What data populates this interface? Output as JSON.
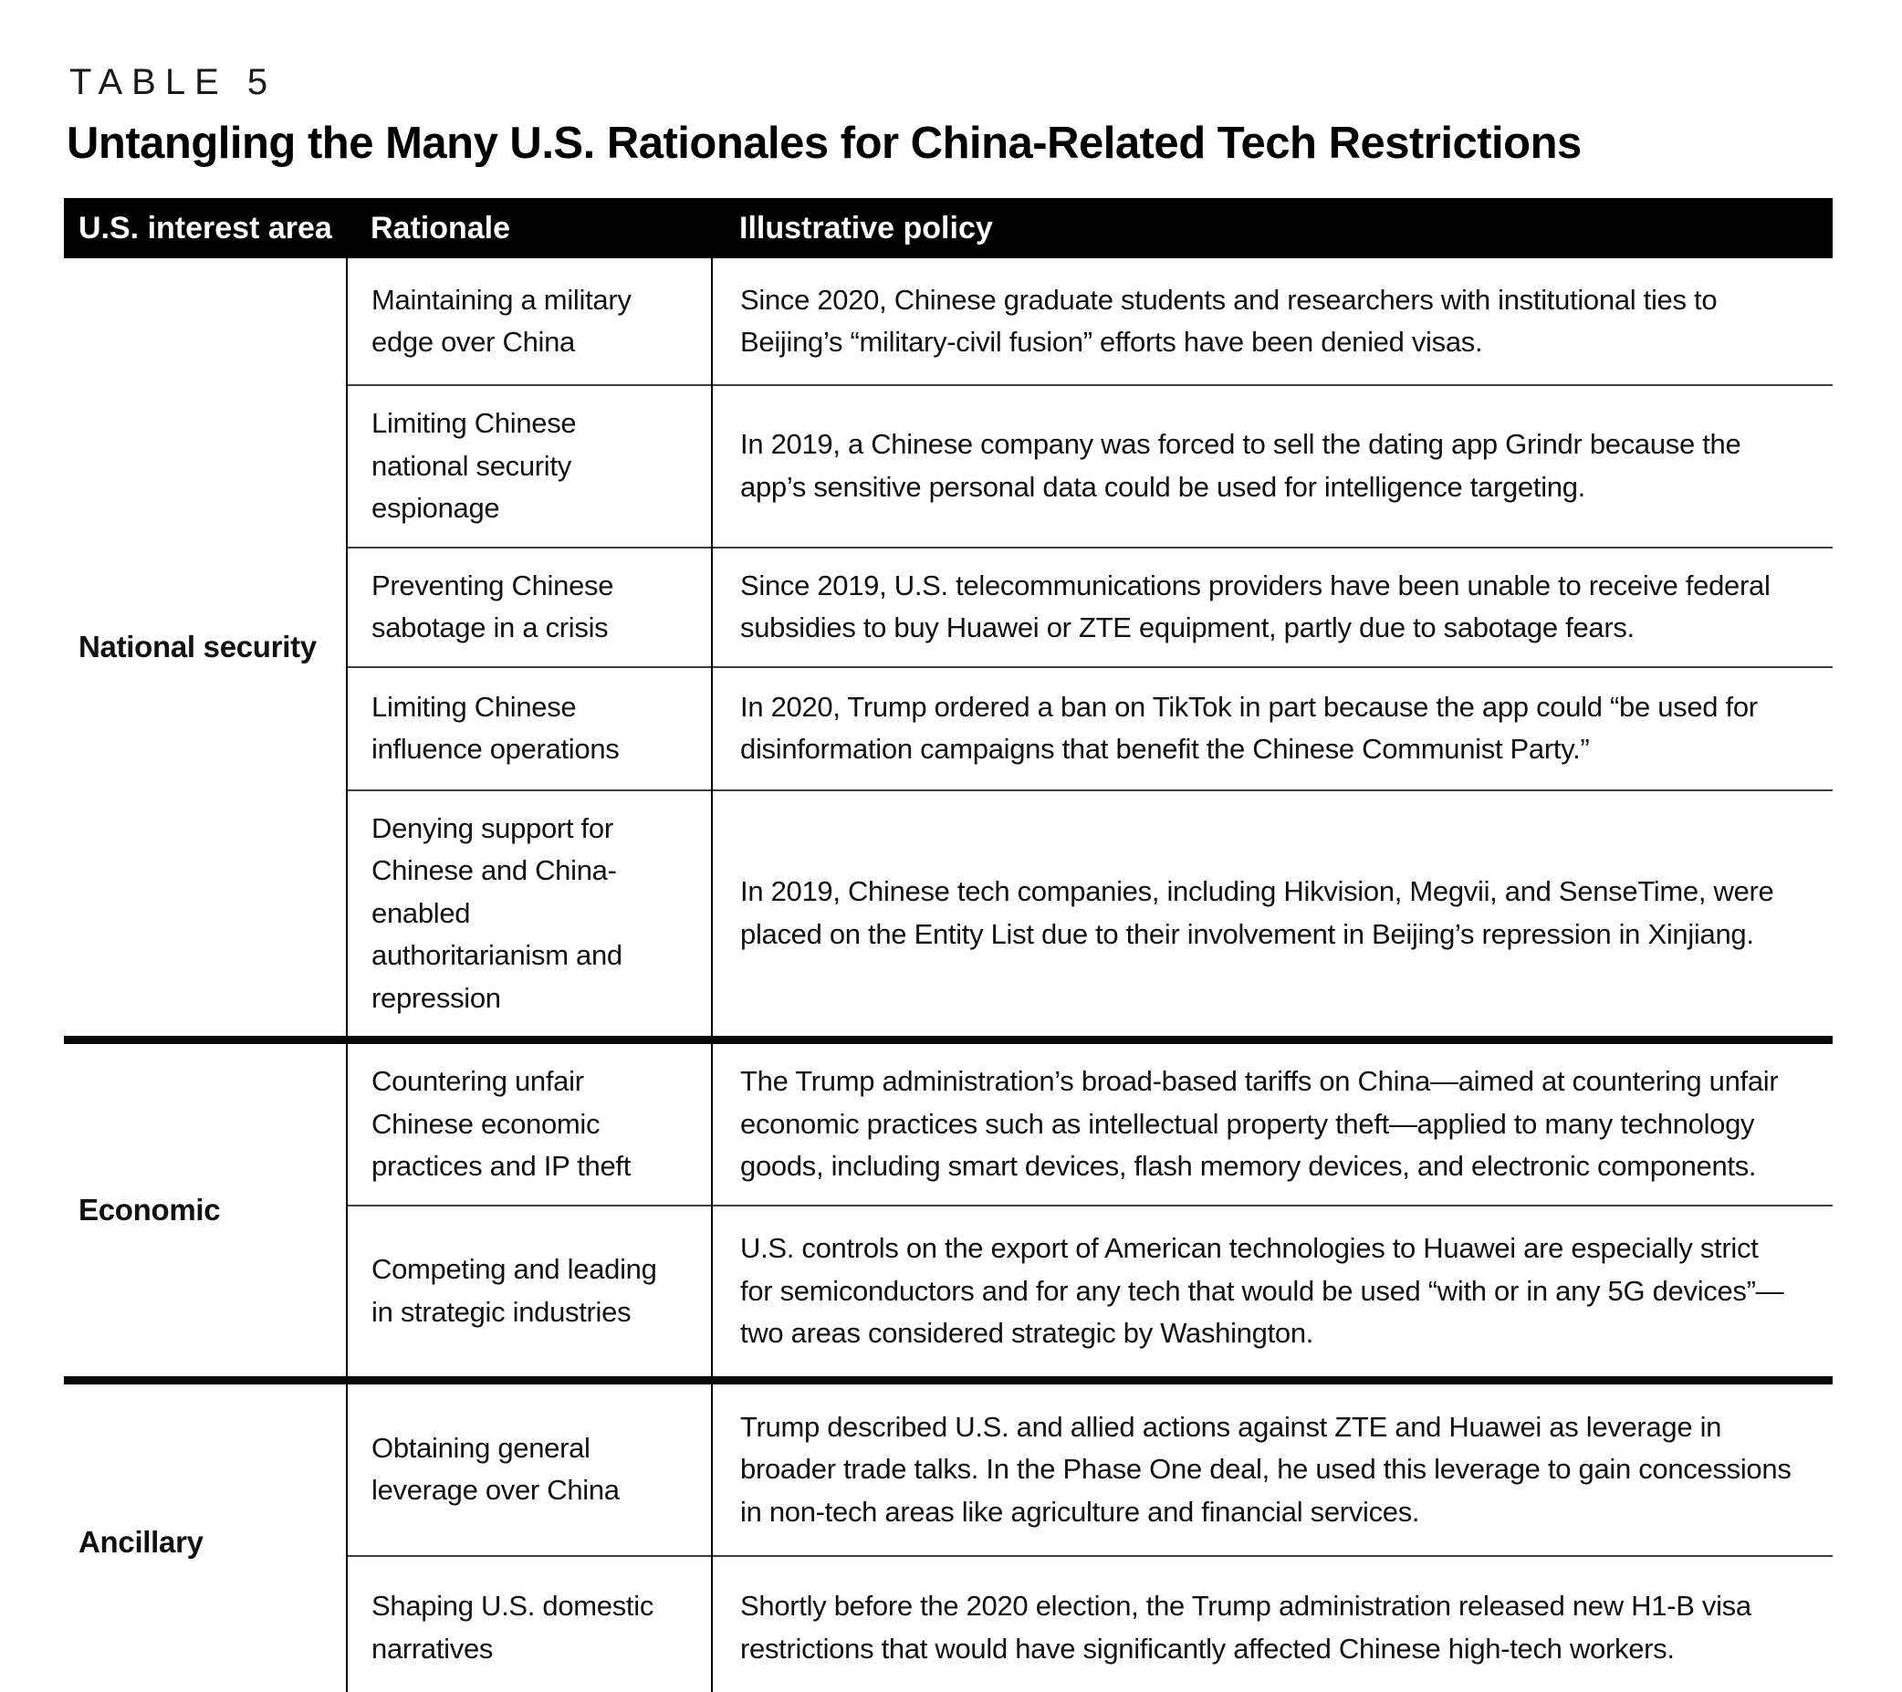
{
  "table_label": "TABLE 5",
  "title": "Untangling the Many U.S. Rationales for China-Related Tech Restrictions",
  "columns": {
    "area": "U.S. interest area",
    "rationale": "Rationale",
    "policy": "Illustrative policy"
  },
  "colors": {
    "header_bg": "#000000",
    "header_text": "#ffffff",
    "body_text": "#111111",
    "thick_rule": "#0a0a0a",
    "thin_rule": "#3d3d3d"
  },
  "sections": [
    {
      "area": "National security",
      "rows": [
        {
          "rationale": "Maintaining a military edge over China",
          "policy": "Since 2020, Chinese graduate students and researchers with institutional ties to Beijing’s “military-civil fusion” efforts have been denied visas."
        },
        {
          "rationale": "Limiting Chinese national security espionage",
          "policy": "In 2019, a Chinese company was forced to sell the dating app Grindr because the app’s sensitive personal data could be used for intelligence targeting."
        },
        {
          "rationale": "Preventing Chinese sabotage in a crisis",
          "policy": "Since 2019, U.S. telecommunications providers have been unable to receive federal subsidies to buy Huawei or ZTE equipment, partly due to sabotage fears."
        },
        {
          "rationale": "Limiting Chinese influence operations",
          "policy": "In 2020, Trump ordered a ban on TikTok in part because the app could “be used for disinformation campaigns that benefit the Chinese Communist Party.”"
        },
        {
          "rationale": "Denying support for Chinese and China-enabled authoritarianism and repression",
          "policy": "In 2019, Chinese tech companies, including Hikvision, Megvii, and SenseTime, were placed on the Entity List due to their involvement in Beijing’s repression in Xinjiang."
        }
      ]
    },
    {
      "area": "Economic",
      "rows": [
        {
          "rationale": "Countering unfair Chinese economic practices and IP theft",
          "policy": "The Trump administration’s broad-based tariffs on China—aimed at countering unfair economic practices such as intellectual property theft—applied to many technology goods, including smart devices, flash memory devices, and electronic components."
        },
        {
          "rationale": "Competing and leading in strategic industries",
          "policy": "U.S. controls on the export of American technologies to Huawei are especially strict for semiconductors and for any tech that would be used “with or in any 5G devices”—two areas considered strategic by Washington."
        }
      ]
    },
    {
      "area": "Ancillary",
      "rows": [
        {
          "rationale": "Obtaining general leverage over China",
          "policy": "Trump described U.S. and allied actions against ZTE and Huawei as leverage in broader trade talks. In the Phase One deal, he used this leverage to gain concessions in non-tech areas like agriculture and financial services."
        },
        {
          "rationale": "Shaping U.S. domestic narratives",
          "policy": "Shortly before the 2020 election, the Trump administration released new H1-B visa restrictions that would have significantly affected Chinese high-tech workers."
        }
      ]
    }
  ]
}
